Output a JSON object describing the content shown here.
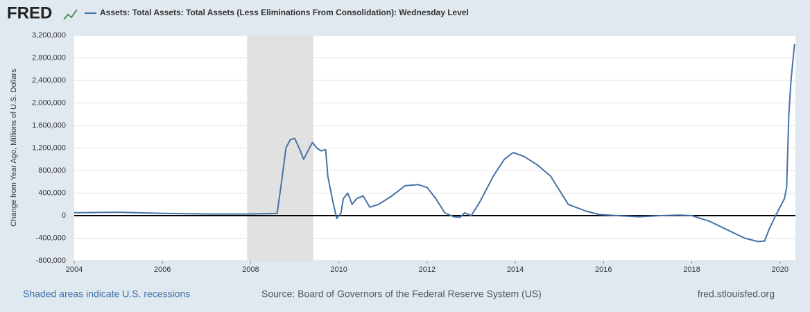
{
  "logo": "FRED",
  "chart_data": {
    "type": "line",
    "ylabel": "Change from Year Ago, Millions of U.S. Dollars",
    "x": [
      2004.0,
      2005.0,
      2006.0,
      2007.0,
      2008.0,
      2008.6,
      2008.7,
      2008.8,
      2008.9,
      2009.0,
      2009.1,
      2009.2,
      2009.3,
      2009.4,
      2009.5,
      2009.6,
      2009.7,
      2009.75,
      2009.85,
      2009.95,
      2010.05,
      2010.1,
      2010.2,
      2010.3,
      2010.4,
      2010.55,
      2010.7,
      2010.9,
      2011.2,
      2011.5,
      2011.8,
      2012.0,
      2012.2,
      2012.4,
      2012.6,
      2012.75,
      2012.85,
      2013.0,
      2013.2,
      2013.5,
      2013.75,
      2013.95,
      2014.2,
      2014.5,
      2014.8,
      2015.0,
      2015.2,
      2015.6,
      2015.9,
      2016.3,
      2016.8,
      2017.3,
      2017.7,
      2018.0,
      2018.4,
      2018.8,
      2019.2,
      2019.5,
      2019.65,
      2019.75,
      2019.9,
      2020.0,
      2020.1,
      2020.15,
      2020.2,
      2020.25,
      2020.3,
      2020.33
    ],
    "series": [
      {
        "name": "Assets: Total Assets: Total Assets (Less Eliminations From Consolidation): Wednesday Level",
        "color": "#4572a7",
        "values": [
          50000,
          60000,
          40000,
          30000,
          30000,
          40000,
          600000,
          1200000,
          1350000,
          1370000,
          1200000,
          1000000,
          1150000,
          1300000,
          1200000,
          1150000,
          1170000,
          700000,
          300000,
          -50000,
          50000,
          300000,
          400000,
          200000,
          300000,
          350000,
          150000,
          200000,
          350000,
          530000,
          550000,
          500000,
          300000,
          50000,
          -20000,
          -30000,
          50000,
          0,
          250000,
          700000,
          1000000,
          1120000,
          1050000,
          900000,
          700000,
          450000,
          200000,
          80000,
          20000,
          0,
          -20000,
          0,
          10000,
          0,
          -100000,
          -250000,
          -400000,
          -460000,
          -450000,
          -250000,
          0,
          150000,
          300000,
          500000,
          1800000,
          2400000,
          2800000,
          3050000
        ]
      }
    ],
    "recessions": [
      [
        2007.92,
        2009.42
      ]
    ],
    "xlim": [
      2004,
      2020.35
    ],
    "xticks": [
      2004,
      2006,
      2008,
      2010,
      2012,
      2014,
      2016,
      2018,
      2020
    ],
    "ylim": [
      -800000,
      3200000
    ],
    "yticks": [
      {
        "value": -800000,
        "label": "-800,000"
      },
      {
        "value": -400000,
        "label": "-400,000"
      },
      0,
      {
        "value": 400000,
        "label": "400,000"
      },
      {
        "value": 800000,
        "label": "800,000"
      },
      {
        "value": 1200000,
        "label": "1,200,000"
      },
      {
        "value": 1600000,
        "label": "1,600,000"
      },
      {
        "value": 2000000,
        "label": "2,000,000"
      },
      {
        "value": 2400000,
        "label": "2,400,000"
      },
      {
        "value": 2800000,
        "label": "2,800,000"
      },
      {
        "value": 3200000,
        "label": "3,200,000"
      }
    ],
    "grid": true
  },
  "footer": {
    "note": "Shaded areas indicate U.S. recessions",
    "source": "Source: Board of Governors of the Federal Reserve System (US)",
    "url": "fred.stlouisfed.org"
  }
}
